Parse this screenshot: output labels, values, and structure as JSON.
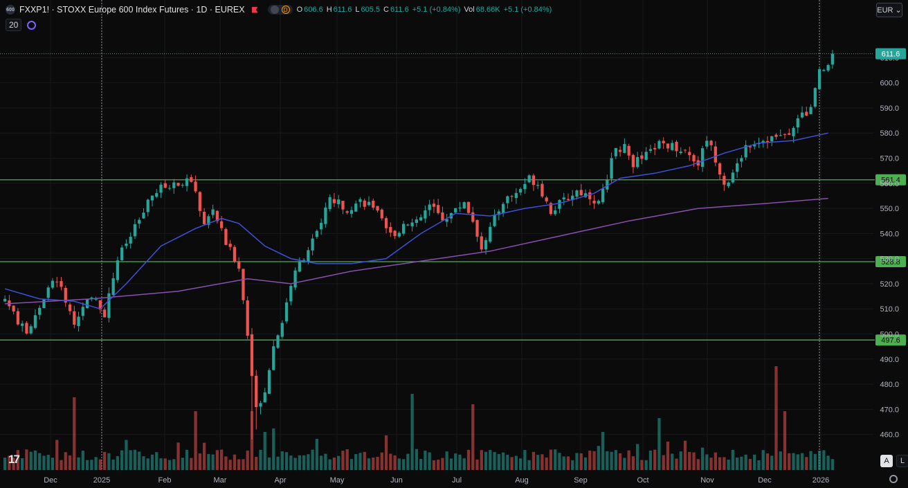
{
  "header": {
    "logo_text": "600",
    "title": "FXXP1! · STOXX Europe 600 Index Futures · 1D · EUREX",
    "badge": "D",
    "ohlc": [
      {
        "k": "O",
        "v": "606.6"
      },
      {
        "k": "H",
        "v": "611.6"
      },
      {
        "k": "L",
        "v": "605.5"
      },
      {
        "k": "C",
        "v": "611.6"
      },
      {
        "k": "",
        "v": "+5.1 (+0.84%)"
      },
      {
        "k": "Vol",
        "v": "68.66K"
      },
      {
        "k": "",
        "v": "+5.1 (+0.84%)"
      }
    ]
  },
  "indicator": {
    "ma_length": "20"
  },
  "currency": {
    "value": "EUR",
    "chevron": "chevron-down-icon"
  },
  "scale_buttons": {
    "auto": "A",
    "log": "L"
  },
  "tv_logo": "17",
  "colors": {
    "up": "#26a69a",
    "down": "#ef5350",
    "ma_fast": "#3f51d8",
    "ma_slow": "#8a4fb0",
    "level": "#4caf50",
    "bg": "#0b0b0c"
  },
  "chart_data": {
    "type": "candlestick",
    "ylim": [
      453,
      617
    ],
    "y_ticks": [
      460,
      470,
      480,
      490,
      500,
      510,
      520,
      530,
      540,
      550,
      560,
      570,
      580,
      590,
      600,
      610
    ],
    "x_labels": [
      "Dec",
      "2025",
      "Feb",
      "Mar",
      "Apr",
      "May",
      "Jun",
      "Jul",
      "Aug",
      "Sep",
      "Oct",
      "Nov",
      "Dec",
      "2026"
    ],
    "last_price": "611.6",
    "horizontal_levels": [
      "561.4",
      "528.8",
      "497.6"
    ],
    "price_path": [
      [
        0,
        514
      ],
      [
        3,
        505
      ],
      [
        5,
        500
      ],
      [
        7,
        508
      ],
      [
        10,
        518
      ],
      [
        12,
        522
      ],
      [
        14,
        513
      ],
      [
        16,
        502
      ],
      [
        18,
        512
      ],
      [
        21,
        514
      ],
      [
        23,
        508
      ],
      [
        26,
        530
      ],
      [
        30,
        542
      ],
      [
        34,
        555
      ],
      [
        36,
        558
      ],
      [
        40,
        560
      ],
      [
        42,
        562
      ],
      [
        44,
        556
      ],
      [
        46,
        543
      ],
      [
        48,
        550
      ],
      [
        51,
        536
      ],
      [
        53,
        530
      ],
      [
        54,
        527
      ],
      [
        56,
        500
      ],
      [
        58,
        470
      ],
      [
        60,
        478
      ],
      [
        62,
        495
      ],
      [
        64,
        505
      ],
      [
        66,
        520
      ],
      [
        68,
        528
      ],
      [
        72,
        540
      ],
      [
        75,
        554
      ],
      [
        79,
        550
      ],
      [
        82,
        553
      ],
      [
        85,
        551
      ],
      [
        88,
        541
      ],
      [
        90,
        538
      ],
      [
        92,
        545
      ],
      [
        95,
        544
      ],
      [
        98,
        551
      ],
      [
        101,
        546
      ],
      [
        104,
        549
      ],
      [
        106,
        553
      ],
      [
        108,
        545
      ],
      [
        110,
        535
      ],
      [
        112,
        542
      ],
      [
        115,
        553
      ],
      [
        118,
        556
      ],
      [
        121,
        562
      ],
      [
        123,
        560
      ],
      [
        126,
        549
      ],
      [
        129,
        553
      ],
      [
        132,
        557
      ],
      [
        135,
        555
      ],
      [
        137,
        552
      ],
      [
        139,
        563
      ],
      [
        141,
        574
      ],
      [
        143,
        574
      ],
      [
        145,
        568
      ],
      [
        148,
        571
      ],
      [
        151,
        576
      ],
      [
        154,
        575
      ],
      [
        157,
        573
      ],
      [
        160,
        568
      ],
      [
        162,
        578
      ],
      [
        164,
        570
      ],
      [
        166,
        560
      ],
      [
        168,
        563
      ],
      [
        171,
        575
      ],
      [
        174,
        577
      ],
      [
        177,
        578
      ],
      [
        180,
        579
      ],
      [
        183,
        585
      ],
      [
        186,
        590
      ],
      [
        188,
        604
      ],
      [
        190,
        607
      ],
      [
        191,
        611.6
      ]
    ],
    "ma_fast": [
      [
        0,
        518
      ],
      [
        8,
        514
      ],
      [
        16,
        513
      ],
      [
        22,
        510
      ],
      [
        28,
        520
      ],
      [
        36,
        535
      ],
      [
        44,
        542
      ],
      [
        50,
        546
      ],
      [
        54,
        544
      ],
      [
        60,
        535
      ],
      [
        66,
        530
      ],
      [
        72,
        528
      ],
      [
        80,
        528
      ],
      [
        88,
        530
      ],
      [
        96,
        540
      ],
      [
        104,
        548
      ],
      [
        112,
        547
      ],
      [
        120,
        550
      ],
      [
        128,
        552
      ],
      [
        136,
        556
      ],
      [
        142,
        562
      ],
      [
        150,
        564
      ],
      [
        158,
        567
      ],
      [
        166,
        572
      ],
      [
        174,
        576
      ],
      [
        182,
        577
      ],
      [
        190,
        580
      ]
    ],
    "ma_slow": [
      [
        0,
        512
      ],
      [
        20,
        514
      ],
      [
        40,
        517
      ],
      [
        56,
        522
      ],
      [
        66,
        520
      ],
      [
        80,
        525
      ],
      [
        96,
        529
      ],
      [
        112,
        533
      ],
      [
        128,
        539
      ],
      [
        144,
        545
      ],
      [
        160,
        550
      ],
      [
        176,
        552
      ],
      [
        190,
        554
      ]
    ]
  }
}
